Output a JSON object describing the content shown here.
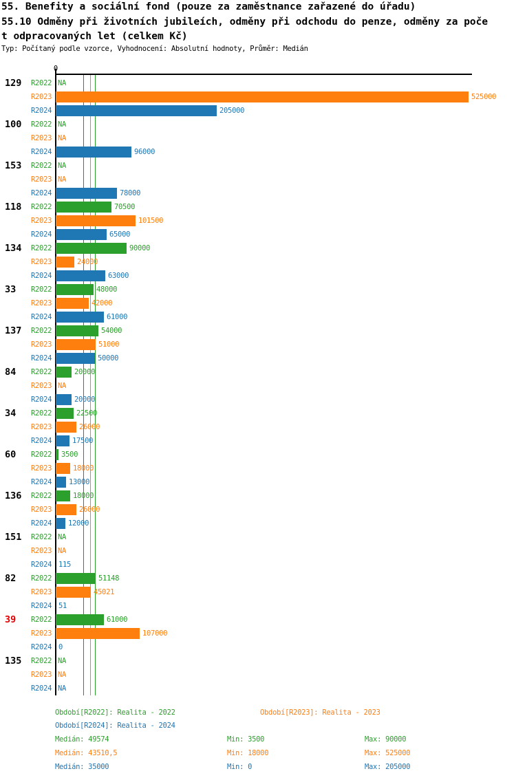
{
  "title": {
    "line1": "55. Benefity a sociální fond (pouze za zaměstnance zařazené do úřadu)",
    "line2": "55.10 Odměny při životních jubileích, odměny při odchodu do penze, odměny za poče",
    "line3": "t odpracovaných let (celkem Kč)",
    "meta": "Typ: Počítaný podle vzorce, Vyhodnocení: Absolutní hodnoty, Průměr: Medián"
  },
  "colors": {
    "R2022": "#2CA02C",
    "R2023": "#FF7F0E",
    "R2024": "#1F77B4",
    "highlight": "#DD0000",
    "axis": "#000000"
  },
  "na_label": "NA",
  "chart_data": {
    "type": "bar",
    "orientation": "horizontal",
    "value_unit": "Kč",
    "grid": false,
    "axis": {
      "origin_label": "0",
      "min": 0,
      "max": 525000
    },
    "series": [
      {
        "label": "R2022",
        "color_key": "R2022",
        "median": 49574,
        "min": 3500,
        "max": 90000
      },
      {
        "label": "R2023",
        "color_key": "R2023",
        "median": 43510.5,
        "min": 18000,
        "max": 525000
      },
      {
        "label": "R2024",
        "color_key": "R2024",
        "median": 35000,
        "min": 0,
        "max": 205000
      }
    ],
    "groups": [
      {
        "label": "129",
        "highlight": false,
        "values": [
          null,
          525000,
          205000
        ],
        "value_labels": [
          "NA",
          "525000",
          "205000"
        ]
      },
      {
        "label": "100",
        "highlight": false,
        "values": [
          null,
          null,
          96000
        ],
        "value_labels": [
          "NA",
          "NA",
          "96000"
        ]
      },
      {
        "label": "153",
        "highlight": false,
        "values": [
          null,
          null,
          78000
        ],
        "value_labels": [
          "NA",
          "NA",
          "78000"
        ]
      },
      {
        "label": "118",
        "highlight": false,
        "values": [
          70500,
          101500,
          65000
        ],
        "value_labels": [
          "70500",
          "101500",
          "65000"
        ]
      },
      {
        "label": "134",
        "highlight": false,
        "values": [
          90000,
          24000,
          63000
        ],
        "value_labels": [
          "90000",
          "24000",
          "63000"
        ]
      },
      {
        "label": "33",
        "highlight": false,
        "values": [
          48000,
          42000,
          61000
        ],
        "value_labels": [
          "48000",
          "42000",
          "61000"
        ]
      },
      {
        "label": "137",
        "highlight": false,
        "values": [
          54000,
          51000,
          50000
        ],
        "value_labels": [
          "54000",
          "51000",
          "50000"
        ]
      },
      {
        "label": "84",
        "highlight": false,
        "values": [
          20000,
          null,
          20000
        ],
        "value_labels": [
          "20000",
          "NA",
          "20000"
        ]
      },
      {
        "label": "34",
        "highlight": false,
        "values": [
          22500,
          26000,
          17500
        ],
        "value_labels": [
          "22500",
          "26000",
          "17500"
        ]
      },
      {
        "label": "60",
        "highlight": false,
        "values": [
          3500,
          18000,
          13000
        ],
        "value_labels": [
          "3500",
          "18000",
          "13000"
        ]
      },
      {
        "label": "136",
        "highlight": false,
        "values": [
          18000,
          26000,
          12000
        ],
        "value_labels": [
          "18000",
          "26000",
          "12000"
        ]
      },
      {
        "label": "151",
        "highlight": false,
        "values": [
          null,
          null,
          115
        ],
        "value_labels": [
          "NA",
          "NA",
          "115"
        ]
      },
      {
        "label": "82",
        "highlight": false,
        "values": [
          51148,
          45021,
          51
        ],
        "value_labels": [
          "51148",
          "45021",
          "51"
        ]
      },
      {
        "label": "39",
        "highlight": true,
        "values": [
          61000,
          107000,
          0
        ],
        "value_labels": [
          "61000",
          "107000",
          "0"
        ]
      },
      {
        "label": "135",
        "highlight": false,
        "values": [
          null,
          null,
          null
        ],
        "value_labels": [
          "NA",
          "NA",
          "NA"
        ]
      }
    ]
  },
  "footer": {
    "legend": [
      {
        "text": "Období[R2022]: Realita - 2022",
        "color_key": "R2022",
        "row": 0,
        "col": 0
      },
      {
        "text": "Období[R2023]: Realita - 2023",
        "color_key": "R2023",
        "row": 0,
        "col": 1
      },
      {
        "text": "Období[R2024]: Realita - 2024",
        "color_key": "R2024",
        "row": 1,
        "col": 0
      }
    ],
    "stats_rows": [
      {
        "color_key": "R2022",
        "median": "Medián: 49574",
        "min": "Min: 3500",
        "max": "Max: 90000"
      },
      {
        "color_key": "R2023",
        "median": "Medián: 43510,5",
        "min": "Min: 18000",
        "max": "Max: 525000"
      },
      {
        "color_key": "R2024",
        "median": "Medián: 35000",
        "min": "Min: 0",
        "max": "Max: 205000"
      }
    ]
  }
}
